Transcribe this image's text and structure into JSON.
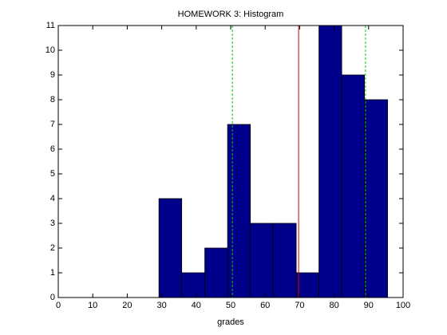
{
  "chart_data": {
    "type": "histogram",
    "title": "HOMEWORK 3: Histogram",
    "x_label": "grades",
    "bins": [
      29.2,
      35.8,
      42.5,
      49.1,
      55.7,
      62.3,
      69.0,
      75.6,
      82.2,
      88.8,
      95.5
    ],
    "counts": [
      4,
      1,
      2,
      7,
      3,
      3,
      1,
      11,
      9,
      8
    ],
    "color": "#00008b",
    "edge_color": "#000000",
    "xlim": [
      0,
      100
    ],
    "xticks": [
      0,
      10,
      20,
      30,
      40,
      50,
      60,
      70,
      80,
      90,
      100
    ],
    "ylim": [
      0,
      11
    ],
    "yticks": [
      0,
      1,
      2,
      3,
      4,
      5,
      6,
      7,
      8,
      9,
      10,
      11
    ],
    "reference_lines": [
      {
        "value": 50.5,
        "color": "#00cc00",
        "dashed": true
      },
      {
        "value": 69.7,
        "color": "#cc0000",
        "dashed": false
      },
      {
        "value": 89.1,
        "color": "#00cc00",
        "dashed": true
      }
    ]
  }
}
